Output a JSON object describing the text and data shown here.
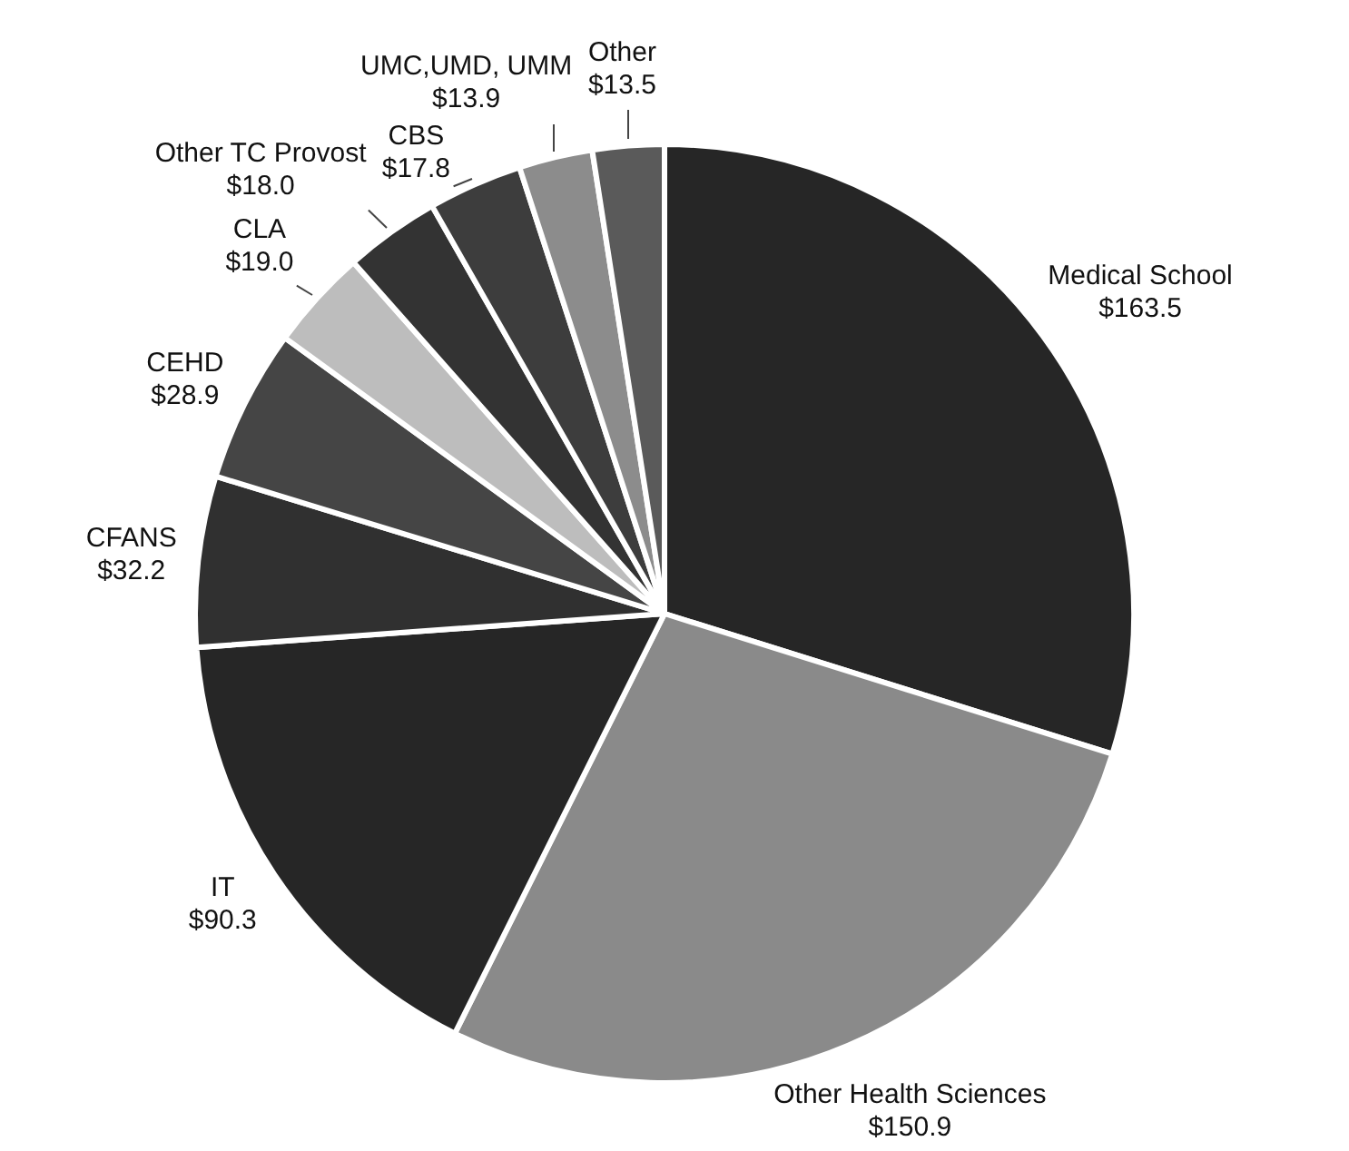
{
  "chart_data": {
    "type": "pie",
    "categories": [
      "Medical School",
      "Other Health Sciences",
      "IT",
      "CFANS",
      "CEHD",
      "CLA",
      "Other TC Provost",
      "CBS",
      "UMC,UMD, UMM",
      "Other"
    ],
    "values": [
      163.5,
      150.9,
      90.3,
      32.2,
      28.9,
      19.0,
      18.0,
      17.8,
      13.9,
      13.5
    ],
    "value_labels": [
      "$163.5",
      "$150.9",
      "$90.3",
      "$32.2",
      "$28.9",
      "$19.0",
      "$18.0",
      "$17.8",
      "$13.9",
      "$13.5"
    ],
    "colors": [
      "#262626",
      "#8a8a8a",
      "#262626",
      "#303030",
      "#454545",
      "#bdbdbd",
      "#333333",
      "#3d3d3d",
      "#8c8c8c",
      "#5a5a5a"
    ],
    "legend": false
  }
}
